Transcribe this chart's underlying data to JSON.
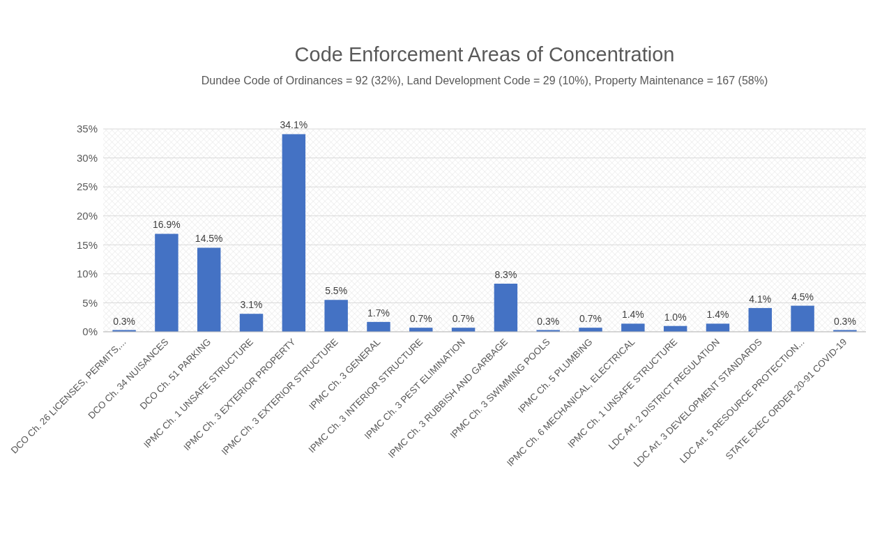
{
  "chart_data": {
    "type": "bar",
    "title": "Code Enforcement  Areas of Concentration",
    "subtitle": "Dundee Code of Ordinances = 92 (32%),  Land Development Code = 29 (10%),  Property Maintenance = 167 (58%)",
    "categories": [
      "DCO Ch. 26 LICENSES, PERMITS,...",
      "DCO Ch. 34 NUISANCES",
      "DCO Ch. 51 PARKING",
      "IPMC Ch. 1 UNSAFE STRUCTURE",
      "IPMC Ch. 3 EXTERIOR PROPERTY",
      "IPMC Ch. 3 EXTERIOR STRUCTURE",
      "IPMC Ch. 3 GENERAL",
      "IPMC Ch. 3 INTERIOR STRUCTURE",
      "IPMC Ch. 3 PEST ELIMINATION",
      "IPMC Ch. 3 RUBBISH AND GARBAGE",
      "IPMC Ch. 3 SWIMMING POOLS",
      "IPMC Ch. 5 PLUMBING",
      "IPMC Ch. 6 MECHANICAL, ELECTRICAL",
      "IPMC Ch. 1 UNSAFE STRUCTURE",
      "LDC Art. 2 DISTRICT REGULATION",
      "LDC Art. 3 DEVELOPMENT STANDARDS",
      "LDC Art. 5 RESOURCE PROTECTION...",
      "STATE EXEC ORDER 20-91 COVID-19"
    ],
    "values": [
      0.3,
      16.9,
      14.5,
      3.1,
      34.1,
      5.5,
      1.7,
      0.7,
      0.7,
      8.3,
      0.3,
      0.7,
      1.4,
      1.0,
      1.4,
      4.1,
      4.5,
      0.3
    ],
    "value_labels": [
      "0.3%",
      "16.9%",
      "14.5%",
      "3.1%",
      "34.1%",
      "5.5%",
      "1.7%",
      "0.7%",
      "0.7%",
      "8.3%",
      "0.3%",
      "0.7%",
      "1.4%",
      "1.0%",
      "1.4%",
      "4.1%",
      "4.5%",
      "0.3%"
    ],
    "color": "#4472c4",
    "ylim": [
      0,
      35
    ],
    "yticks": [
      {
        "value": 0,
        "label": "0%"
      },
      {
        "value": 5,
        "label": "5%"
      },
      {
        "value": 10,
        "label": "10%"
      },
      {
        "value": 15,
        "label": "15%"
      },
      {
        "value": 20,
        "label": "20%"
      },
      {
        "value": 25,
        "label": "25%"
      },
      {
        "value": 30,
        "label": "30%"
      },
      {
        "value": 35,
        "label": "35%"
      }
    ],
    "grid": "y"
  }
}
